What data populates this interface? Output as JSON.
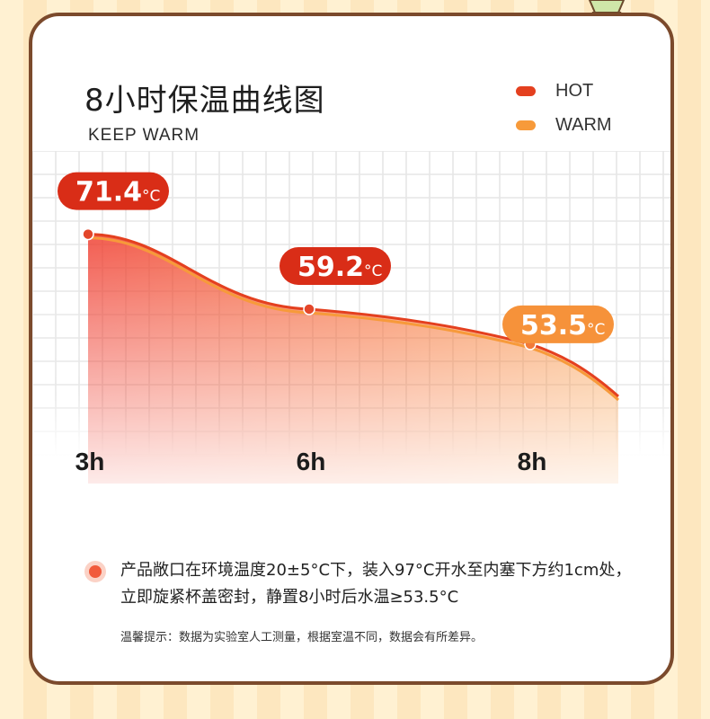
{
  "header": {
    "title": "8小时保温曲线图",
    "subtitle": "KEEP WARM"
  },
  "legend": [
    {
      "label": "HOT",
      "color": "#e4401f"
    },
    {
      "label": "WARM",
      "color": "#f79a3a"
    }
  ],
  "chart_data": {
    "type": "area",
    "title": "8小时保温曲线图",
    "subtitle": "KEEP WARM",
    "x": [
      "3h",
      "6h",
      "8h"
    ],
    "series": [
      {
        "name": "HOT",
        "values": [
          71.4,
          59.2,
          53.5
        ]
      }
    ],
    "value_labels": [
      {
        "value": "71.4",
        "unit": "°C"
      },
      {
        "value": "59.2",
        "unit": "°C"
      },
      {
        "value": "53.5",
        "unit": "°C"
      }
    ],
    "ylabel": "",
    "xlabel": "",
    "grid": true,
    "legend_position": "top-right"
  },
  "note": {
    "text": "产品敞口在环境温度20±5°C下，装入97°C开水至内塞下方约1cm处，立即旋紧杯盖密封，静置8小时后水温≥53.5°C",
    "tip": "温馨提示：数据为实验室人工测量，根据室温不同，数据会有所差异。"
  },
  "colors": {
    "frame": "#7b4a2c",
    "hot": "#e4401f",
    "warm": "#f79a3a"
  },
  "decoration": {
    "icon": "ice-cream-cone-icon"
  }
}
